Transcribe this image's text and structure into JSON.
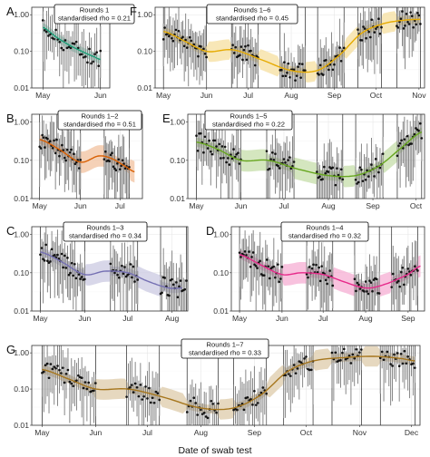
{
  "x_axis_title": "Date of swab test",
  "chart_data": [
    {
      "panel": "A",
      "type": "line",
      "annotation": [
        "Rounds 1",
        "standardised rho = 0.21"
      ],
      "color": "#1b9e77",
      "x_ticks": [
        "May",
        "Jun"
      ],
      "y_ticks": [
        "1.00",
        "0.10",
        "0.01"
      ],
      "y_scale": "log",
      "ylim": [
        0.01,
        1.6
      ],
      "x_range": [
        "2020-04-25",
        "2020-06-06"
      ],
      "rounds": [
        [
          "2020-05-01",
          "2020-06-01"
        ]
      ],
      "x": [
        "2020-05-01",
        "2020-05-08",
        "2020-05-15",
        "2020-05-22",
        "2020-05-29",
        "2020-06-01"
      ],
      "y": [
        0.45,
        0.25,
        0.15,
        0.1,
        0.07,
        0.06
      ]
    },
    {
      "panel": "B",
      "type": "line",
      "annotation": [
        "Rounds 1–2",
        "standardised rho = 0.51"
      ],
      "color": "#d95f02",
      "x_ticks": [
        "May",
        "Jun",
        "Jul"
      ],
      "y_ticks": [
        "1.00",
        "0.10",
        "0.01"
      ],
      "y_scale": "log",
      "ylim": [
        0.01,
        1.6
      ],
      "x_range": [
        "2020-04-25",
        "2020-07-18"
      ],
      "rounds": [
        [
          "2020-05-01",
          "2020-06-01"
        ],
        [
          "2020-06-19",
          "2020-07-08"
        ]
      ],
      "x": [
        "2020-05-01",
        "2020-05-15",
        "2020-06-01",
        "2020-06-15",
        "2020-06-25",
        "2020-07-05",
        "2020-07-12"
      ],
      "y": [
        0.35,
        0.2,
        0.09,
        0.13,
        0.11,
        0.07,
        0.05
      ]
    },
    {
      "panel": "C",
      "type": "line",
      "annotation": [
        "Rounds 1–3",
        "standardised rho = 0.34"
      ],
      "color": "#7570b3",
      "x_ticks": [
        "May",
        "Jun",
        "Jul",
        "Aug"
      ],
      "y_ticks": [
        "1.00",
        "0.10",
        "0.01"
      ],
      "y_scale": "log",
      "ylim": [
        0.01,
        1.6
      ],
      "x_range": [
        "2020-04-25",
        "2020-08-12"
      ],
      "rounds": [
        [
          "2020-05-01",
          "2020-06-01"
        ],
        [
          "2020-06-19",
          "2020-07-08"
        ],
        [
          "2020-07-24",
          "2020-08-11"
        ]
      ],
      "x": [
        "2020-05-01",
        "2020-05-15",
        "2020-06-01",
        "2020-06-15",
        "2020-07-01",
        "2020-07-15",
        "2020-07-30",
        "2020-08-08"
      ],
      "y": [
        0.35,
        0.2,
        0.09,
        0.11,
        0.1,
        0.06,
        0.04,
        0.04
      ]
    },
    {
      "panel": "D",
      "type": "line",
      "annotation": [
        "Rounds 1–4",
        "standardised rho = 0.32"
      ],
      "color": "#e7298a",
      "x_ticks": [
        "May",
        "Jun",
        "Jul",
        "Aug",
        "Sep"
      ],
      "y_ticks": [
        "1.00",
        "0.10",
        "0.01"
      ],
      "y_scale": "log",
      "ylim": [
        0.01,
        1.6
      ],
      "x_range": [
        "2020-04-25",
        "2020-09-13"
      ],
      "rounds": [
        [
          "2020-05-01",
          "2020-06-01"
        ],
        [
          "2020-06-19",
          "2020-07-08"
        ],
        [
          "2020-07-24",
          "2020-08-11"
        ],
        [
          "2020-08-20",
          "2020-09-08"
        ]
      ],
      "x": [
        "2020-05-01",
        "2020-05-15",
        "2020-06-01",
        "2020-06-15",
        "2020-07-01",
        "2020-07-15",
        "2020-08-01",
        "2020-08-15",
        "2020-09-01",
        "2020-09-10"
      ],
      "y": [
        0.3,
        0.17,
        0.09,
        0.1,
        0.09,
        0.06,
        0.04,
        0.05,
        0.09,
        0.15
      ]
    },
    {
      "panel": "E",
      "type": "line",
      "annotation": [
        "Rounds 1–5",
        "standardised rho = 0.22"
      ],
      "color": "#66a61e",
      "x_ticks": [
        "May",
        "Jun",
        "Jul",
        "Aug",
        "Sep",
        "Oct"
      ],
      "y_ticks": [
        "1.00",
        "0.10",
        "0.01"
      ],
      "y_scale": "log",
      "ylim": [
        0.01,
        1.6
      ],
      "x_range": [
        "2020-04-25",
        "2020-10-07"
      ],
      "rounds": [
        [
          "2020-05-01",
          "2020-06-01"
        ],
        [
          "2020-06-19",
          "2020-07-08"
        ],
        [
          "2020-07-24",
          "2020-08-11"
        ],
        [
          "2020-08-20",
          "2020-09-08"
        ],
        [
          "2020-09-18",
          "2020-10-05"
        ]
      ],
      "x": [
        "2020-05-01",
        "2020-05-15",
        "2020-06-01",
        "2020-06-20",
        "2020-07-10",
        "2020-08-01",
        "2020-08-20",
        "2020-09-05",
        "2020-09-20",
        "2020-10-05"
      ],
      "y": [
        0.3,
        0.2,
        0.1,
        0.1,
        0.06,
        0.04,
        0.04,
        0.07,
        0.2,
        0.55
      ]
    },
    {
      "panel": "F",
      "type": "line",
      "annotation": [
        "Rounds 1–6",
        "standardised rho = 0.45"
      ],
      "color": "#e6ab02",
      "x_ticks": [
        "May",
        "Jun",
        "Jul",
        "Aug",
        "Sep",
        "Oct",
        "Nov"
      ],
      "y_ticks": [
        "1.00",
        "0.10",
        "0.01"
      ],
      "y_scale": "log",
      "ylim": [
        0.01,
        1.6
      ],
      "x_range": [
        "2020-04-25",
        "2020-11-05"
      ],
      "rounds": [
        [
          "2020-05-01",
          "2020-06-01"
        ],
        [
          "2020-06-19",
          "2020-07-08"
        ],
        [
          "2020-07-24",
          "2020-08-11"
        ],
        [
          "2020-08-20",
          "2020-09-08"
        ],
        [
          "2020-09-18",
          "2020-10-05"
        ],
        [
          "2020-10-16",
          "2020-11-02"
        ]
      ],
      "x": [
        "2020-05-01",
        "2020-05-15",
        "2020-06-01",
        "2020-06-20",
        "2020-07-10",
        "2020-08-01",
        "2020-08-20",
        "2020-09-05",
        "2020-09-20",
        "2020-10-05",
        "2020-10-20",
        "2020-11-02"
      ],
      "y": [
        0.35,
        0.2,
        0.1,
        0.11,
        0.06,
        0.03,
        0.03,
        0.08,
        0.3,
        0.55,
        0.7,
        0.75
      ]
    },
    {
      "panel": "G",
      "type": "line",
      "annotation": [
        "Rounds 1–7",
        "standardised rho = 0.33"
      ],
      "color": "#a6761d",
      "x_ticks": [
        "May",
        "Jun",
        "Jul",
        "Aug",
        "Sep",
        "Oct",
        "Nov",
        "Dec"
      ],
      "y_ticks": [
        "1.00",
        "0.10",
        "0.01"
      ],
      "y_scale": "log",
      "ylim": [
        0.01,
        1.6
      ],
      "x_range": [
        "2020-04-25",
        "2020-12-06"
      ],
      "rounds": [
        [
          "2020-05-01",
          "2020-06-01"
        ],
        [
          "2020-06-19",
          "2020-07-08"
        ],
        [
          "2020-07-24",
          "2020-08-11"
        ],
        [
          "2020-08-20",
          "2020-09-08"
        ],
        [
          "2020-09-18",
          "2020-10-05"
        ],
        [
          "2020-10-16",
          "2020-11-02"
        ],
        [
          "2020-11-13",
          "2020-12-03"
        ]
      ],
      "x": [
        "2020-05-01",
        "2020-05-15",
        "2020-06-01",
        "2020-06-20",
        "2020-07-10",
        "2020-08-01",
        "2020-08-20",
        "2020-09-05",
        "2020-09-20",
        "2020-10-05",
        "2020-10-25",
        "2020-11-10",
        "2020-11-25",
        "2020-12-03"
      ],
      "y": [
        0.35,
        0.2,
        0.1,
        0.1,
        0.06,
        0.03,
        0.03,
        0.07,
        0.3,
        0.6,
        0.75,
        0.8,
        0.7,
        0.6
      ]
    }
  ]
}
